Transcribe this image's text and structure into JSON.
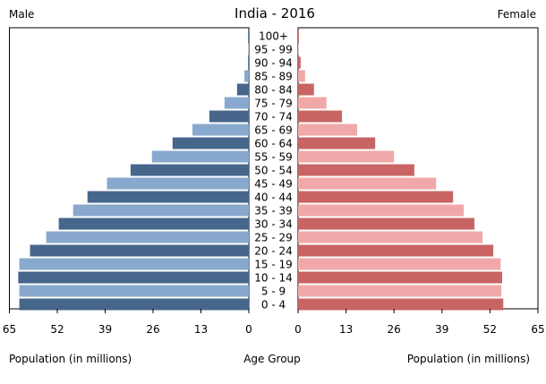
{
  "chart_data": {
    "type": "bar",
    "title": "India - 2016",
    "left_label": "Male",
    "right_label": "Female",
    "xlabel_left": "Population (in millions)",
    "xlabel_center": "Age Group",
    "xlabel_right": "Population (in millions)",
    "xlim": [
      0,
      65
    ],
    "ticks": [
      0,
      13,
      26,
      39,
      52,
      65
    ],
    "categories": [
      "100+",
      "95 - 99",
      "90 - 94",
      "85 - 89",
      "80 - 84",
      "75 - 79",
      "70 - 74",
      "65 - 69",
      "60 - 64",
      "55 - 59",
      "50 - 54",
      "45 - 49",
      "40 - 44",
      "35 - 39",
      "30 - 34",
      "25 - 29",
      "20 - 24",
      "15 - 19",
      "10 - 14",
      "5 - 9",
      "0 - 4"
    ],
    "series": [
      {
        "name": "Male",
        "values": [
          0.2,
          0.1,
          0.2,
          1.2,
          3.2,
          6.6,
          10.7,
          15.3,
          20.7,
          26.3,
          32.1,
          38.5,
          43.8,
          47.7,
          51.6,
          55.0,
          59.4,
          62.3,
          62.6,
          62.3,
          62.3
        ]
      },
      {
        "name": "Female",
        "values": [
          0.2,
          0.1,
          0.7,
          1.9,
          4.3,
          7.7,
          11.9,
          16.0,
          20.9,
          26.0,
          31.5,
          37.4,
          42.0,
          44.9,
          47.8,
          50.0,
          52.9,
          54.9,
          55.3,
          55.1,
          55.6
        ]
      }
    ],
    "colors": {
      "male_dark": "#46668c",
      "male_light": "#88a8ce",
      "female_dark": "#c86464",
      "female_light": "#f0a8a8"
    },
    "grid": false
  }
}
